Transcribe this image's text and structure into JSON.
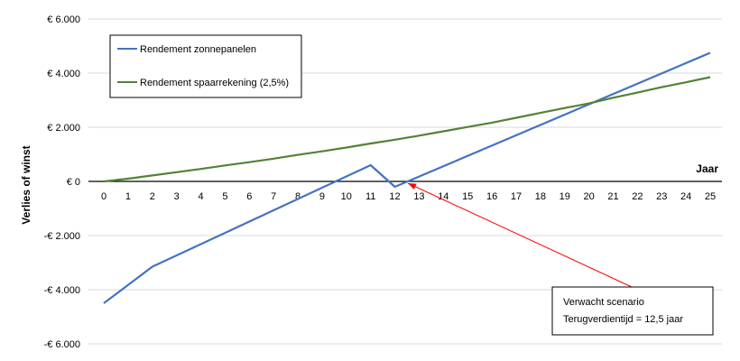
{
  "chart_data": {
    "type": "line",
    "xlabel": "Jaar",
    "ylabel": "Verlies of winst",
    "x": [
      0,
      1,
      2,
      3,
      4,
      5,
      6,
      7,
      8,
      9,
      10,
      11,
      12,
      13,
      14,
      15,
      16,
      17,
      18,
      19,
      20,
      21,
      22,
      23,
      24,
      25
    ],
    "ylim": [
      -6000,
      6000
    ],
    "yticks": [
      6000,
      4000,
      2000,
      0,
      -2000,
      -4000,
      -6000
    ],
    "ytick_labels": [
      "€ 6.000",
      "€ 4.000",
      "€ 2.000",
      "€ 0",
      "-€ 2.000",
      "-€ 4.000",
      "-€ 6.000"
    ],
    "grid": "horizontal",
    "legend_placement": "top-left",
    "series": [
      {
        "name": "Rendement zonnepanelen",
        "color": "#4472c4",
        "points": [
          [
            0,
            -4500
          ],
          [
            2,
            -3150
          ],
          [
            11,
            600
          ],
          [
            12,
            -200
          ],
          [
            25,
            4750
          ]
        ]
      },
      {
        "name": "Rendement spaarrekening (2,5%)",
        "color": "#548235",
        "points": [
          [
            0,
            0
          ],
          [
            1,
            100
          ],
          [
            2,
            220
          ],
          [
            3,
            340
          ],
          [
            4,
            460
          ],
          [
            5,
            590
          ],
          [
            6,
            710
          ],
          [
            7,
            840
          ],
          [
            8,
            980
          ],
          [
            9,
            1110
          ],
          [
            10,
            1250
          ],
          [
            11,
            1400
          ],
          [
            12,
            1540
          ],
          [
            13,
            1690
          ],
          [
            14,
            1850
          ],
          [
            15,
            2010
          ],
          [
            16,
            2170
          ],
          [
            17,
            2350
          ],
          [
            18,
            2530
          ],
          [
            19,
            2710
          ],
          [
            20,
            2880
          ],
          [
            21,
            3090
          ],
          [
            22,
            3280
          ],
          [
            23,
            3480
          ],
          [
            24,
            3660
          ],
          [
            25,
            3850
          ]
        ]
      }
    ],
    "annotation": {
      "lines": [
        "Verwacht scenario",
        "Terugverdientijd = 12,5 jaar"
      ],
      "target": [
        12.5,
        0
      ],
      "arrow_color": "#ff0000"
    }
  }
}
